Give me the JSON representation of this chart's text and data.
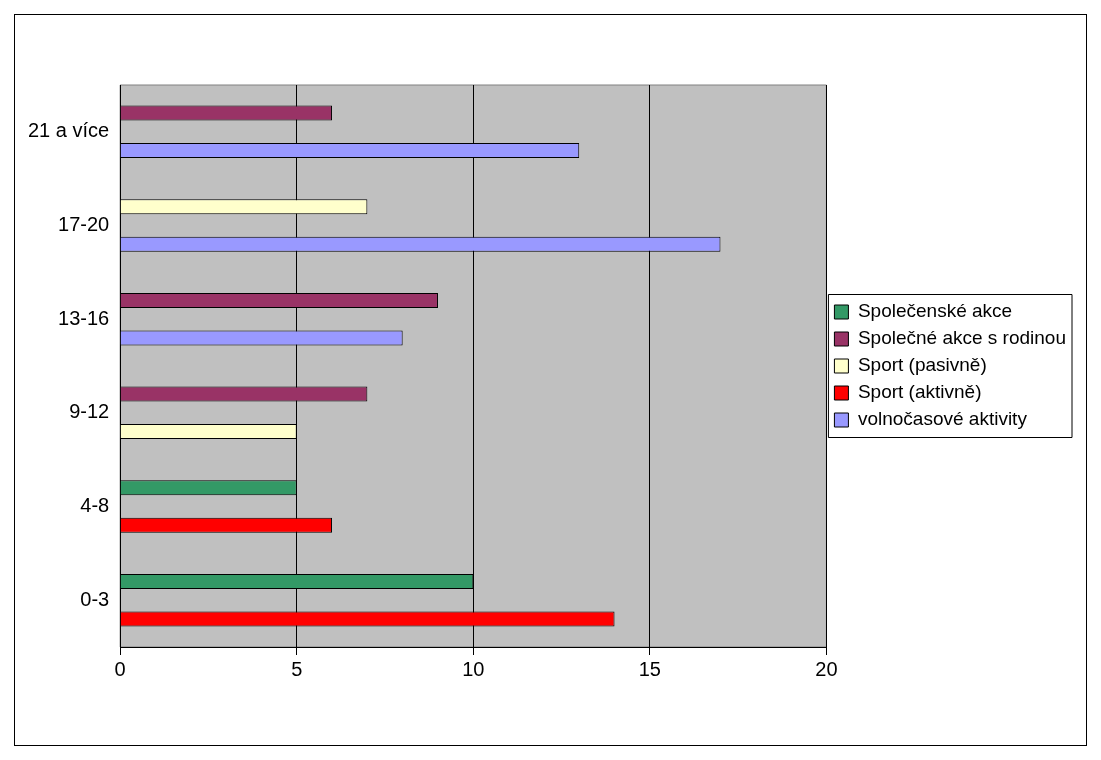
{
  "chart_data": {
    "type": "bar",
    "orientation": "horizontal",
    "categories": [
      "21 a více",
      "17-20",
      "13-16",
      "9-12",
      "4-8",
      "0-3"
    ],
    "series": [
      {
        "name": "Společenské akce",
        "color": "#339966",
        "values": [
          null,
          null,
          null,
          null,
          5,
          10
        ]
      },
      {
        "name": "Společné akce s rodinou",
        "color": "#993366",
        "values": [
          6,
          null,
          9,
          7,
          null,
          null
        ]
      },
      {
        "name": "Sport (pasivně)",
        "color": "#ffffcc",
        "values": [
          null,
          7,
          null,
          5,
          null,
          null
        ]
      },
      {
        "name": "Sport (aktivně)",
        "color": "#ff0000",
        "values": [
          null,
          null,
          null,
          null,
          6,
          14
        ]
      },
      {
        "name": "volnočasové aktivity",
        "color": "#9999ff",
        "values": [
          13,
          17,
          8,
          null,
          null,
          null
        ]
      }
    ],
    "xlim": [
      0,
      20
    ],
    "xticks": [
      0,
      5,
      10,
      15,
      20
    ],
    "grid": "x",
    "legend": "right"
  }
}
